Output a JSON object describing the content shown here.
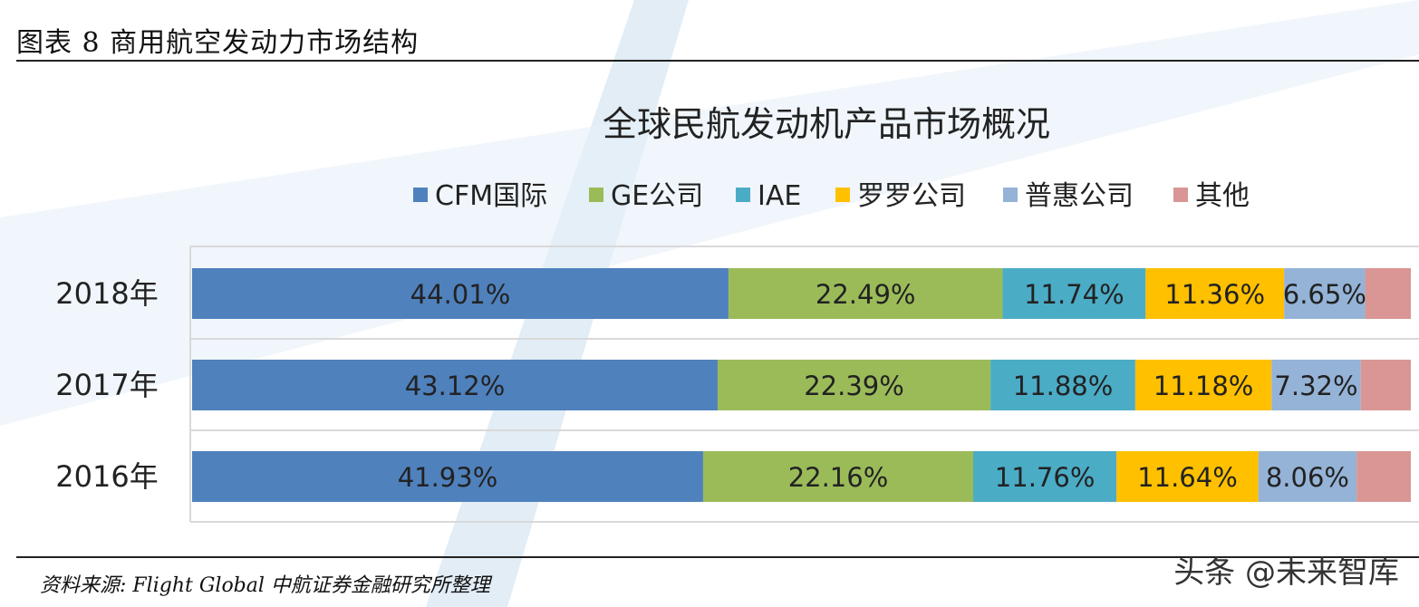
{
  "figure_title": "图表 8 商用航空发动力市场结构",
  "source_text": "资料来源: Flight Global 中航证券金融研究所整理",
  "brand_text": "头条 @未来智库",
  "chart_data": {
    "type": "bar",
    "orientation": "horizontal",
    "stacked": true,
    "title": "全球民航发动机产品市场概况",
    "legend_position": "top",
    "categories": [
      "2018年",
      "2017年",
      "2016年"
    ],
    "series": [
      {
        "name": "CFM国际",
        "color": "#4F81BD",
        "values": [
          44.01,
          43.12,
          41.93
        ],
        "labels": [
          "44.01%",
          "43.12%",
          "41.93%"
        ]
      },
      {
        "name": "GE公司",
        "color": "#9BBB59",
        "values": [
          22.49,
          22.39,
          22.16
        ],
        "labels": [
          "22.49%",
          "22.39%",
          "22.16%"
        ]
      },
      {
        "name": "IAE",
        "color": "#4BACC6",
        "values": [
          11.74,
          11.88,
          11.76
        ],
        "labels": [
          "11.74%",
          "11.88%",
          "11.76%"
        ]
      },
      {
        "name": "罗罗公司",
        "color": "#FFC000",
        "values": [
          11.36,
          11.18,
          11.64
        ],
        "labels": [
          "11.36%",
          "11.18%",
          "11.64%"
        ]
      },
      {
        "name": "普惠公司",
        "color": "#95B3D7",
        "values": [
          6.65,
          7.32,
          8.06
        ],
        "labels": [
          "6.65%",
          "7.32%",
          "8.06%"
        ]
      },
      {
        "name": "其他",
        "color": "#D99694",
        "values": [
          3.75,
          4.11,
          4.45
        ],
        "labels": [
          "",
          "",
          ""
        ]
      }
    ],
    "grid": true
  }
}
